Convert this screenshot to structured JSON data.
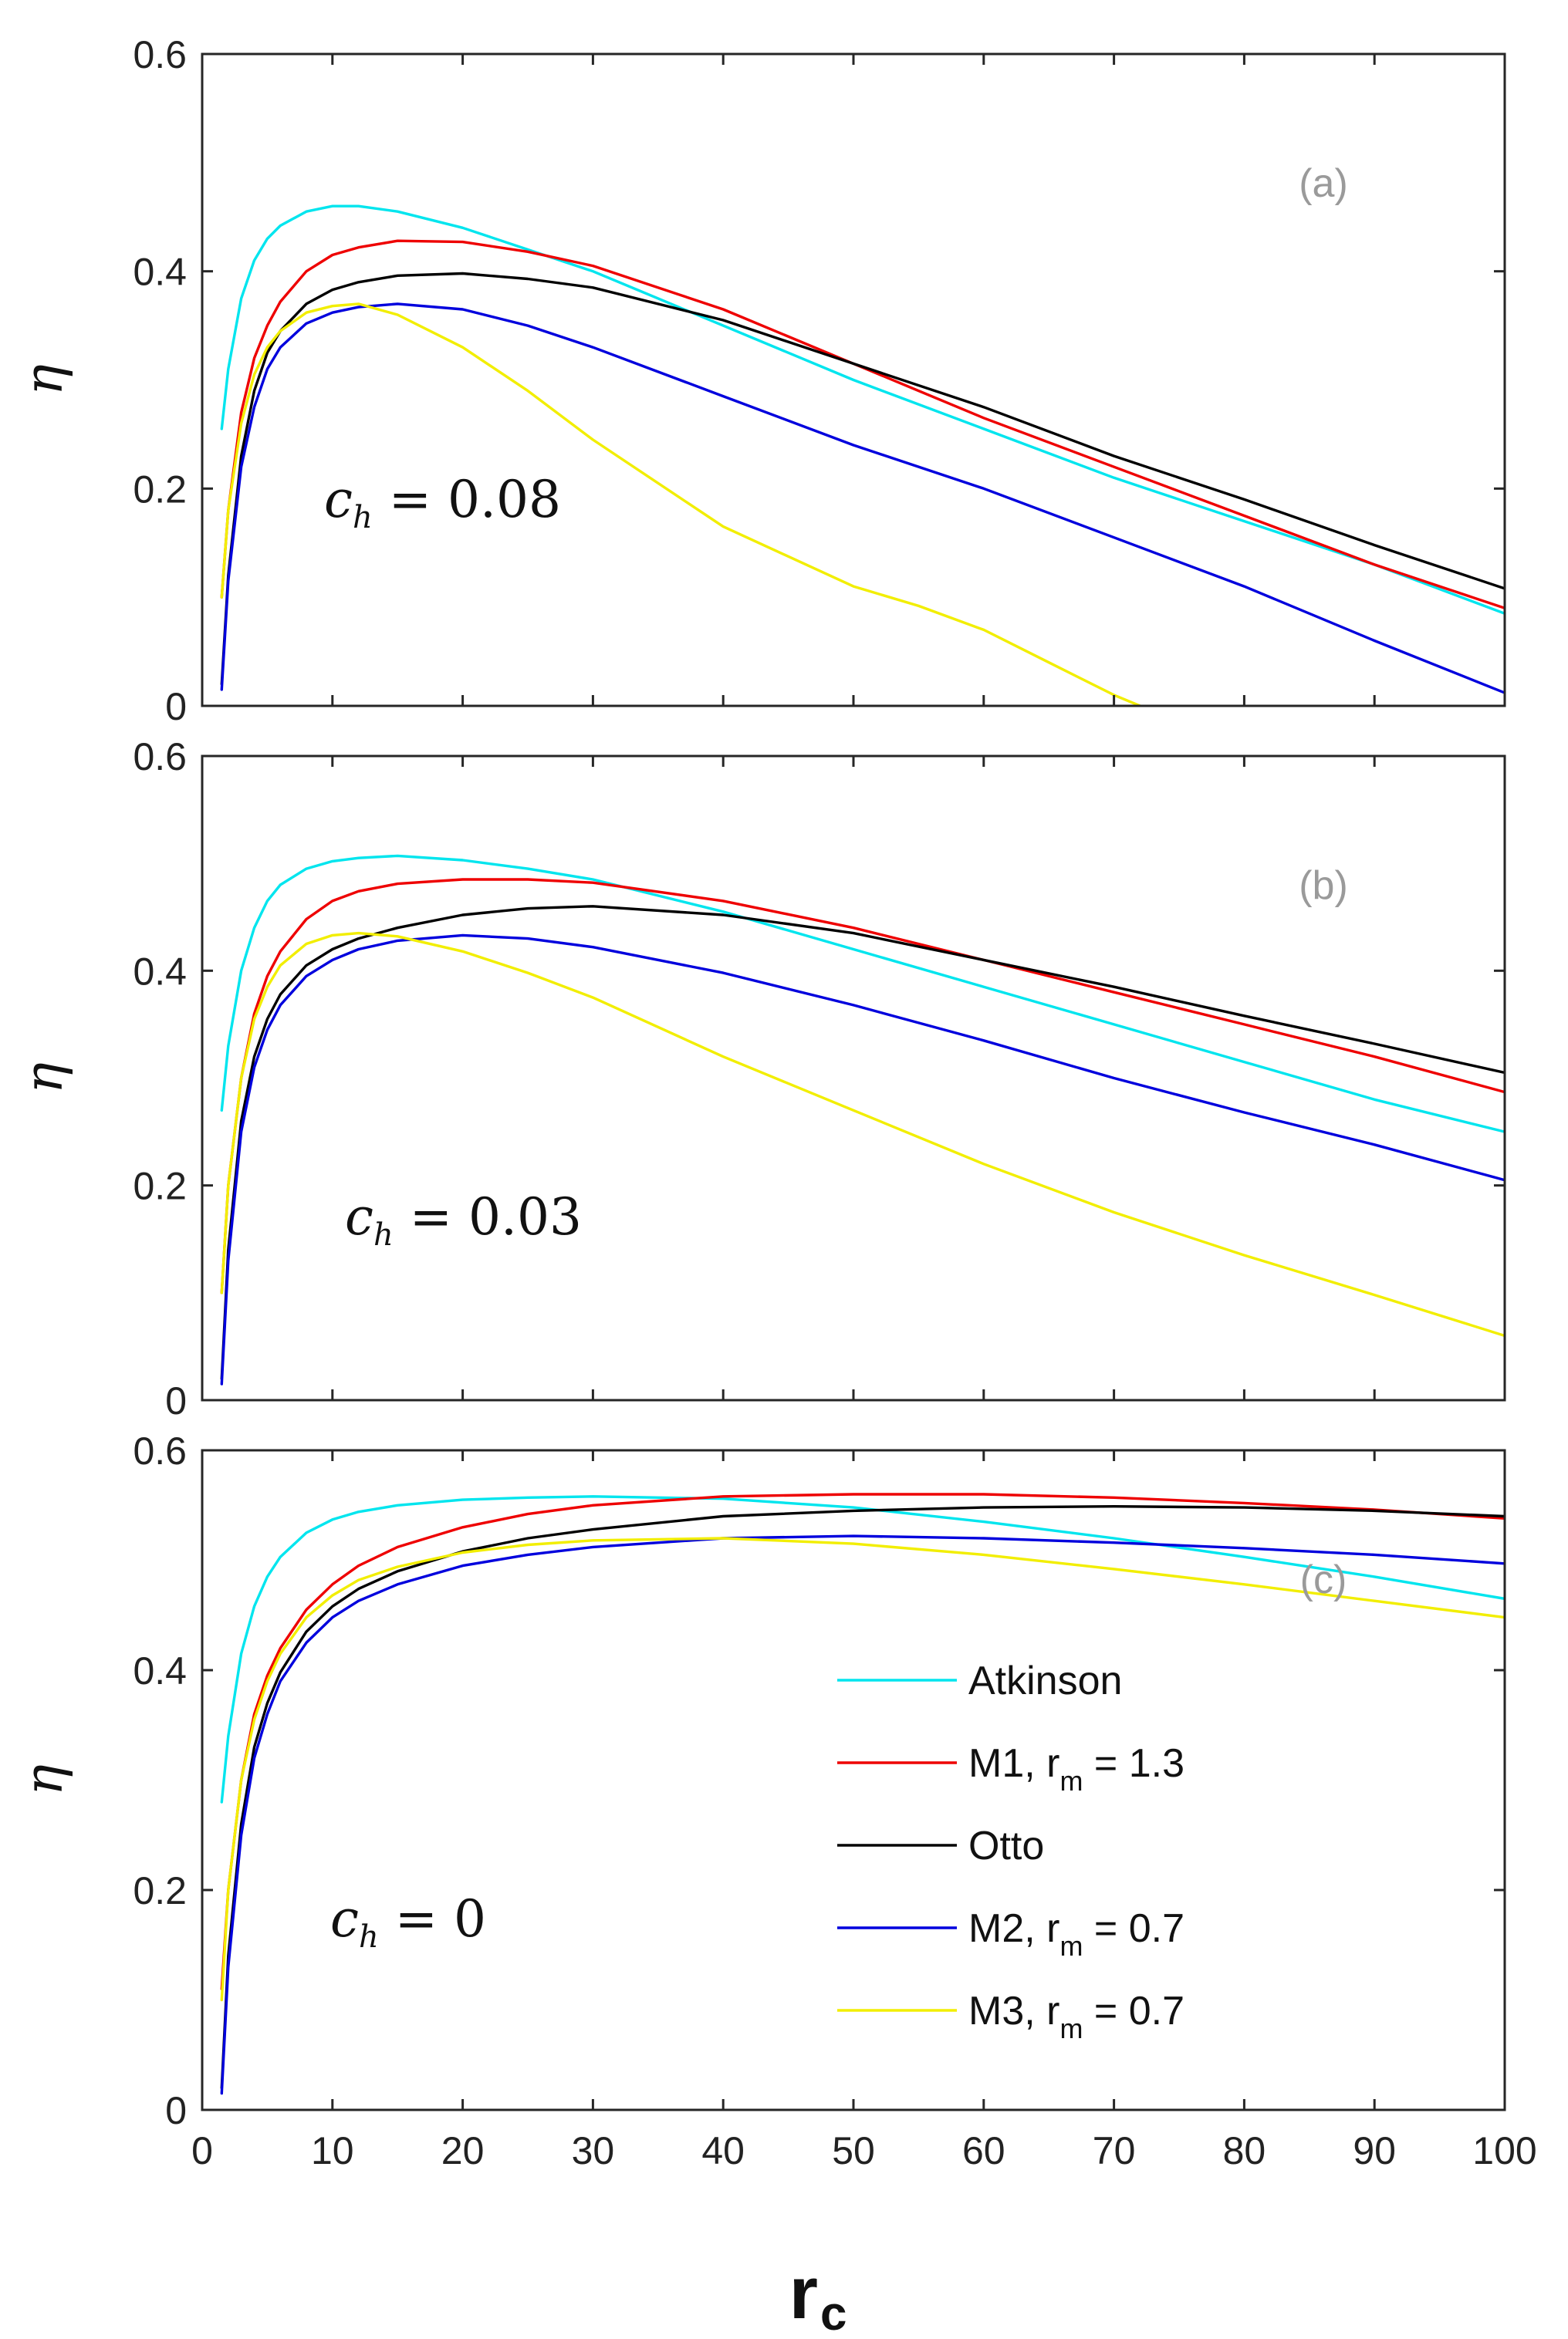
{
  "chart_data": {
    "type": "line",
    "x_label": "r",
    "x_label_subscript": "c",
    "xlim": [
      0,
      100
    ],
    "x_ticks": [
      "0",
      "10",
      "20",
      "30",
      "40",
      "50",
      "60",
      "70",
      "80",
      "90",
      "100"
    ],
    "y_ticks": [
      "0",
      "0.2",
      "0.4",
      "0.6"
    ],
    "legend": {
      "position": "lower-right of panel (c)",
      "entries": [
        {
          "series": "Atkinson",
          "name": "Atkinson",
          "sub": "",
          "tail": ""
        },
        {
          "series": "M1",
          "name": "M1, r",
          "sub": "m",
          "tail": " = 1.3"
        },
        {
          "series": "Otto",
          "name": "Otto",
          "sub": "",
          "tail": ""
        },
        {
          "series": "M2",
          "name": "M2, r",
          "sub": "m",
          "tail": " = 0.7"
        },
        {
          "series": "M3",
          "name": "M3, r",
          "sub": "m",
          "tail": " = 0.7"
        }
      ]
    },
    "series_colors": {
      "Atkinson": "#00e5ee",
      "M1": "#ee0000",
      "Otto": "#000000",
      "M2": "#0000dd",
      "M3": "#f2ee00"
    },
    "panels": [
      {
        "tag": "(a)",
        "ylabel": "η",
        "ylim": [
          0,
          0.6
        ],
        "param": {
          "sym": "c",
          "sub": "h",
          "rest": " = 0.08"
        },
        "series": {
          "Atkinson": {
            "x": [
              1.5,
              2,
              3,
              4,
              5,
              6,
              8,
              10,
              12,
              15,
              20,
              25,
              30,
              40,
              50,
              60,
              70,
              80,
              90,
              100
            ],
            "y": [
              0.255,
              0.31,
              0.375,
              0.41,
              0.43,
              0.442,
              0.455,
              0.46,
              0.46,
              0.455,
              0.44,
              0.42,
              0.4,
              0.35,
              0.3,
              0.255,
              0.21,
              0.17,
              0.13,
              0.085
            ]
          },
          "M1": {
            "x": [
              1.5,
              2,
              3,
              4,
              5,
              6,
              8,
              10,
              12,
              15,
              20,
              25,
              30,
              40,
              50,
              60,
              70,
              80,
              90,
              100
            ],
            "y": [
              0.1,
              0.18,
              0.27,
              0.32,
              0.35,
              0.372,
              0.4,
              0.415,
              0.422,
              0.428,
              0.427,
              0.418,
              0.405,
              0.365,
              0.315,
              0.265,
              0.22,
              0.175,
              0.13,
              0.09
            ]
          },
          "Otto": {
            "x": [
              1.5,
              2,
              3,
              4,
              5,
              6,
              8,
              10,
              12,
              15,
              20,
              25,
              30,
              40,
              50,
              60,
              70,
              80,
              90,
              100
            ],
            "y": [
              0.02,
              0.12,
              0.23,
              0.29,
              0.325,
              0.345,
              0.37,
              0.383,
              0.39,
              0.396,
              0.398,
              0.393,
              0.385,
              0.355,
              0.315,
              0.275,
              0.23,
              0.19,
              0.148,
              0.108
            ]
          },
          "M2": {
            "x": [
              1.5,
              2,
              3,
              4,
              5,
              6,
              8,
              10,
              12,
              15,
              20,
              25,
              30,
              40,
              50,
              60,
              70,
              80,
              90,
              100
            ],
            "y": [
              0.015,
              0.115,
              0.22,
              0.275,
              0.31,
              0.33,
              0.352,
              0.362,
              0.367,
              0.37,
              0.365,
              0.35,
              0.33,
              0.285,
              0.24,
              0.2,
              0.155,
              0.11,
              0.06,
              0.012
            ]
          },
          "M3": {
            "x": [
              1.5,
              2,
              3,
              4,
              5,
              6,
              8,
              10,
              12,
              15,
              20,
              25,
              30,
              40,
              50,
              55,
              60,
              65,
              70,
              72
            ],
            "y": [
              0.1,
              0.18,
              0.26,
              0.305,
              0.33,
              0.345,
              0.362,
              0.368,
              0.37,
              0.36,
              0.33,
              0.29,
              0.245,
              0.165,
              0.11,
              0.092,
              0.07,
              0.04,
              0.01,
              0.0
            ]
          }
        }
      },
      {
        "tag": "(b)",
        "ylabel": "η",
        "ylim": [
          0,
          0.6
        ],
        "param": {
          "sym": "c",
          "sub": "h",
          "rest": " = 0.03"
        },
        "series": {
          "Atkinson": {
            "x": [
              1.5,
              2,
              3,
              4,
              5,
              6,
              8,
              10,
              12,
              15,
              20,
              25,
              30,
              40,
              50,
              60,
              70,
              80,
              90,
              100
            ],
            "y": [
              0.27,
              0.33,
              0.4,
              0.44,
              0.465,
              0.48,
              0.495,
              0.502,
              0.505,
              0.507,
              0.503,
              0.495,
              0.485,
              0.455,
              0.42,
              0.385,
              0.35,
              0.315,
              0.28,
              0.25
            ]
          },
          "M1": {
            "x": [
              1.5,
              2,
              3,
              4,
              5,
              6,
              8,
              10,
              12,
              15,
              20,
              25,
              30,
              40,
              50,
              60,
              70,
              80,
              90,
              100
            ],
            "y": [
              0.1,
              0.2,
              0.3,
              0.36,
              0.395,
              0.418,
              0.448,
              0.465,
              0.474,
              0.481,
              0.485,
              0.485,
              0.482,
              0.465,
              0.44,
              0.41,
              0.38,
              0.35,
              0.32,
              0.287
            ]
          },
          "Otto": {
            "x": [
              1.5,
              2,
              3,
              4,
              5,
              6,
              8,
              10,
              12,
              15,
              20,
              25,
              30,
              40,
              50,
              60,
              70,
              80,
              90,
              100
            ],
            "y": [
              0.02,
              0.14,
              0.26,
              0.32,
              0.355,
              0.378,
              0.405,
              0.42,
              0.43,
              0.44,
              0.452,
              0.458,
              0.46,
              0.452,
              0.435,
              0.41,
              0.385,
              0.358,
              0.332,
              0.305
            ]
          },
          "M2": {
            "x": [
              1.5,
              2,
              3,
              4,
              5,
              6,
              8,
              10,
              12,
              15,
              20,
              25,
              30,
              40,
              50,
              60,
              70,
              80,
              90,
              100
            ],
            "y": [
              0.015,
              0.13,
              0.25,
              0.31,
              0.345,
              0.368,
              0.395,
              0.41,
              0.42,
              0.428,
              0.433,
              0.43,
              0.422,
              0.398,
              0.368,
              0.335,
              0.3,
              0.268,
              0.238,
              0.205
            ]
          },
          "M3": {
            "x": [
              1.5,
              2,
              3,
              4,
              5,
              6,
              8,
              10,
              12,
              15,
              20,
              25,
              30,
              40,
              50,
              60,
              70,
              80,
              90,
              100
            ],
            "y": [
              0.1,
              0.2,
              0.3,
              0.355,
              0.385,
              0.405,
              0.425,
              0.433,
              0.435,
              0.432,
              0.418,
              0.398,
              0.375,
              0.32,
              0.27,
              0.22,
              0.175,
              0.135,
              0.098,
              0.06
            ]
          }
        }
      },
      {
        "tag": "(c)",
        "ylabel": "η",
        "ylim": [
          0,
          0.6
        ],
        "param": {
          "sym": "c",
          "sub": "h",
          "rest": " = 0"
        },
        "series": {
          "Atkinson": {
            "x": [
              1.5,
              2,
              3,
              4,
              5,
              6,
              8,
              10,
              12,
              15,
              20,
              25,
              30,
              40,
              50,
              60,
              70,
              80,
              90,
              100
            ],
            "y": [
              0.28,
              0.34,
              0.415,
              0.458,
              0.485,
              0.503,
              0.525,
              0.537,
              0.544,
              0.55,
              0.555,
              0.557,
              0.558,
              0.556,
              0.548,
              0.535,
              0.52,
              0.503,
              0.485,
              0.465
            ]
          },
          "M1": {
            "x": [
              1.5,
              2,
              3,
              4,
              5,
              6,
              8,
              10,
              12,
              15,
              20,
              25,
              30,
              40,
              50,
              60,
              70,
              80,
              90,
              100
            ],
            "y": [
              0.11,
              0.2,
              0.3,
              0.36,
              0.395,
              0.42,
              0.455,
              0.478,
              0.495,
              0.512,
              0.53,
              0.542,
              0.55,
              0.558,
              0.56,
              0.56,
              0.557,
              0.552,
              0.546,
              0.538
            ]
          },
          "Otto": {
            "x": [
              1.5,
              2,
              3,
              4,
              5,
              6,
              8,
              10,
              12,
              15,
              20,
              25,
              30,
              40,
              50,
              60,
              70,
              80,
              90,
              100
            ],
            "y": [
              0.02,
              0.14,
              0.26,
              0.33,
              0.37,
              0.398,
              0.435,
              0.458,
              0.474,
              0.49,
              0.508,
              0.52,
              0.528,
              0.54,
              0.545,
              0.548,
              0.549,
              0.548,
              0.545,
              0.54
            ]
          },
          "M2": {
            "x": [
              1.5,
              2,
              3,
              4,
              5,
              6,
              8,
              10,
              12,
              15,
              20,
              25,
              30,
              40,
              50,
              60,
              70,
              80,
              90,
              100
            ],
            "y": [
              0.015,
              0.13,
              0.25,
              0.32,
              0.36,
              0.39,
              0.425,
              0.448,
              0.463,
              0.478,
              0.495,
              0.505,
              0.512,
              0.52,
              0.522,
              0.52,
              0.516,
              0.511,
              0.505,
              0.497
            ]
          },
          "M3": {
            "x": [
              1.5,
              2,
              3,
              4,
              5,
              6,
              8,
              10,
              12,
              15,
              20,
              25,
              30,
              40,
              50,
              60,
              70,
              80,
              90,
              100
            ],
            "y": [
              0.1,
              0.2,
              0.3,
              0.355,
              0.39,
              0.415,
              0.448,
              0.468,
              0.482,
              0.494,
              0.507,
              0.514,
              0.518,
              0.52,
              0.515,
              0.505,
              0.492,
              0.478,
              0.463,
              0.448
            ]
          }
        }
      }
    ]
  }
}
